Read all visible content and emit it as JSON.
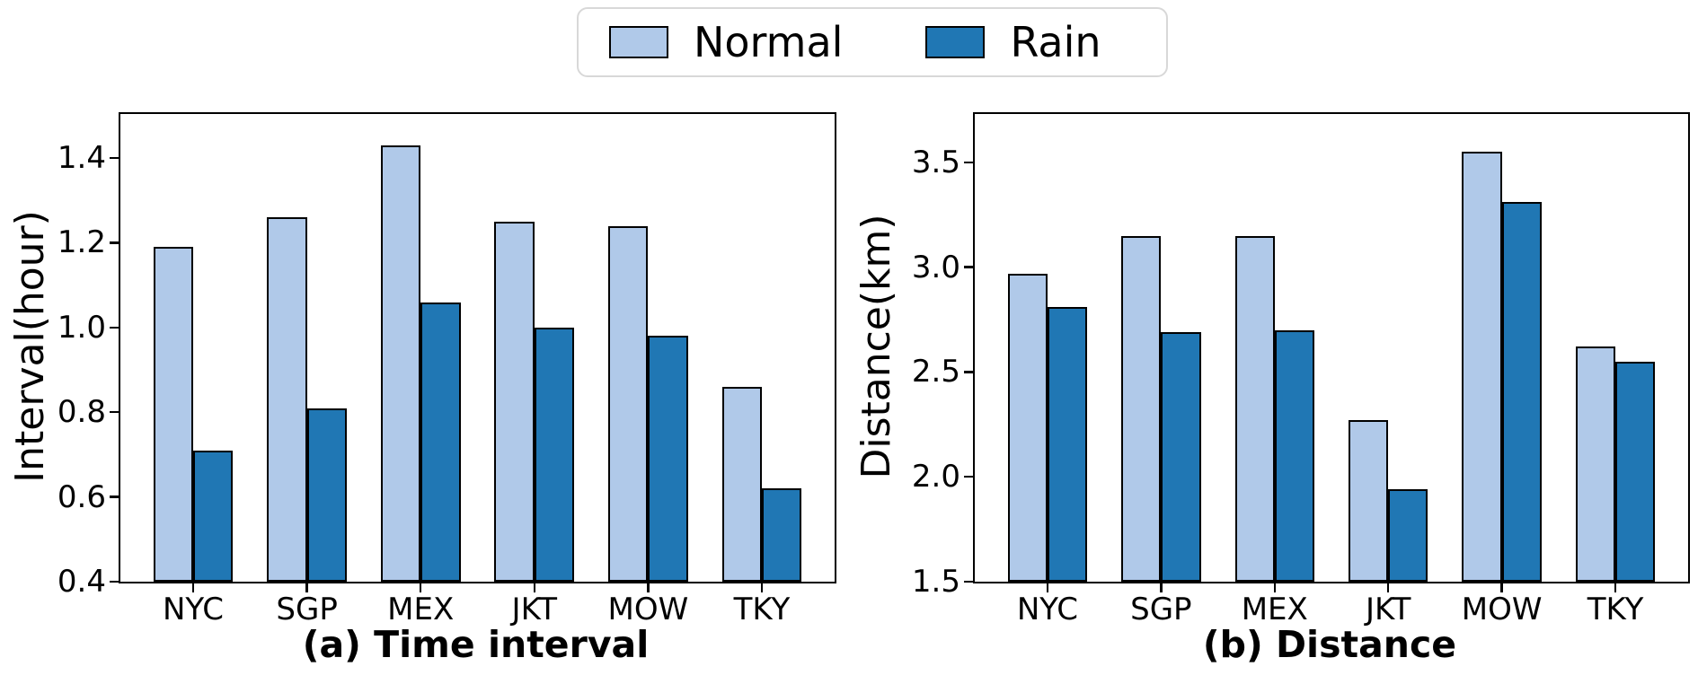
{
  "legend": {
    "items": [
      {
        "label": "Normal",
        "color": "#b0c9e9"
      },
      {
        "label": "Rain",
        "color": "#2077b4"
      }
    ]
  },
  "colors": {
    "normal_fill": "#b0c9e9",
    "rain_fill": "#2077b4",
    "bar_edge": "#000000",
    "axis": "#000000",
    "legend_border": "#d8d8d8",
    "background": "#ffffff"
  },
  "chart_data": [
    {
      "type": "bar",
      "caption": "(a) Time interval",
      "xlabel": "",
      "ylabel": "Interval(hour)",
      "categories": [
        "NYC",
        "SGP",
        "MEX",
        "JKT",
        "MOW",
        "TKY"
      ],
      "series": [
        {
          "name": "Normal",
          "values": [
            1.19,
            1.26,
            1.43,
            1.25,
            1.24,
            0.86
          ]
        },
        {
          "name": "Rain",
          "values": [
            0.71,
            0.81,
            1.06,
            1.0,
            0.98,
            0.62
          ]
        }
      ],
      "yticks": [
        0.4,
        0.6,
        0.8,
        1.0,
        1.2,
        1.4
      ],
      "ytick_labels": [
        "0.4",
        "0.6",
        "0.8",
        "1.0",
        "1.2",
        "1.4"
      ],
      "ylim": [
        0.4,
        1.504
      ],
      "xlim": [
        -0.64,
        5.64
      ],
      "bar_width": 0.35,
      "grid": false,
      "legend_position": "top-center-above-figure"
    },
    {
      "type": "bar",
      "caption": "(b) Distance",
      "xlabel": "",
      "ylabel": "Distance(km)",
      "categories": [
        "NYC",
        "SGP",
        "MEX",
        "JKT",
        "MOW",
        "TKY"
      ],
      "series": [
        {
          "name": "Normal",
          "values": [
            2.97,
            3.15,
            3.15,
            2.27,
            3.55,
            2.62
          ]
        },
        {
          "name": "Rain",
          "values": [
            2.81,
            2.69,
            2.7,
            1.94,
            3.31,
            2.55
          ]
        }
      ],
      "yticks": [
        1.5,
        2.0,
        2.5,
        3.0,
        3.5
      ],
      "ytick_labels": [
        "1.5",
        "2.0",
        "2.5",
        "3.0",
        "3.5"
      ],
      "ylim": [
        1.5,
        3.731
      ],
      "xlim": [
        -0.64,
        5.64
      ],
      "bar_width": 0.35,
      "grid": false,
      "legend_position": "top-center-above-figure"
    }
  ]
}
